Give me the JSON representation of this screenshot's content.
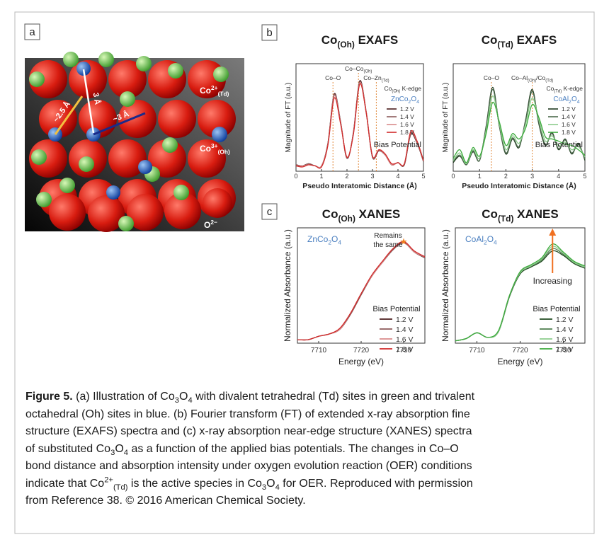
{
  "panel_a": {
    "label": "a",
    "distances": [
      "~2.5 Å",
      "3 Å",
      "~3 Å"
    ],
    "legend": [
      [
        {
          "text": "Co"
        },
        {
          "text": "2+",
          "style": "sup"
        },
        {
          "text": "(Td)",
          "style": "sub"
        }
      ],
      [
        {
          "text": "Co"
        },
        {
          "text": "3+",
          "style": "sup"
        },
        {
          "text": "(Oh)",
          "style": "sub"
        }
      ],
      [
        {
          "text": "O"
        },
        {
          "text": "2−",
          "style": "sup"
        }
      ]
    ]
  },
  "panel_b": {
    "label": "b"
  },
  "panel_c": {
    "label": "c"
  },
  "chart_data": [
    {
      "type": "line",
      "title": [
        {
          "text": "Co"
        },
        {
          "text": "(Oh)",
          "style": "sub"
        },
        {
          "text": " EXAFS"
        }
      ],
      "xlabel": "Pseudo Interatomic Distance (Å)",
      "ylabel": "Magnitude of FT (a.u.)",
      "xlim": [
        0,
        5
      ],
      "xticks": [
        0,
        1,
        2,
        3,
        4,
        5
      ],
      "ylim": [
        0,
        1
      ],
      "edge": [
        {
          "text": "Co"
        },
        {
          "text": "(Oh)",
          "style": "sub"
        },
        {
          "text": " K-edge"
        }
      ],
      "sample": [
        {
          "text": "ZnCo"
        },
        {
          "text": "2",
          "style": "sub"
        },
        {
          "text": "O"
        },
        {
          "text": "4",
          "style": "sub"
        }
      ],
      "legend_title": "Bias Potential",
      "vlines": [
        {
          "value": 1.45,
          "label": [
            {
              "text": "Co–O"
            }
          ]
        },
        {
          "value": 2.45,
          "label": [
            {
              "text": "Co–Co"
            },
            {
              "text": "(Oh)",
              "style": "sub"
            }
          ]
        },
        {
          "value": 3.15,
          "label": [
            {
              "text": "Co–Zn"
            },
            {
              "text": "(Td)",
              "style": "sub"
            }
          ]
        }
      ],
      "x": [
        0,
        0.25,
        0.5,
        0.75,
        1,
        1.25,
        1.5,
        1.75,
        2,
        2.25,
        2.5,
        2.75,
        3,
        3.25,
        3.5,
        3.75,
        4,
        4.25,
        4.5,
        4.75,
        5
      ],
      "series": [
        {
          "name": "1.2 V",
          "color": "#4a1c1c",
          "values": [
            0.06,
            0.05,
            0.07,
            0.05,
            0.05,
            0.26,
            0.72,
            0.46,
            0.12,
            0.36,
            0.84,
            0.56,
            0.13,
            0.19,
            0.15,
            0.06,
            0.08,
            0.06,
            0.34,
            0.26,
            0.09
          ]
        },
        {
          "name": "1.4 V",
          "color": "#8b5a5a",
          "values": [
            0.06,
            0.05,
            0.07,
            0.05,
            0.05,
            0.25,
            0.71,
            0.45,
            0.12,
            0.35,
            0.83,
            0.55,
            0.13,
            0.19,
            0.15,
            0.06,
            0.08,
            0.06,
            0.35,
            0.27,
            0.09
          ]
        },
        {
          "name": "1.6 V",
          "color": "#d88a8a",
          "values": [
            0.05,
            0.05,
            0.06,
            0.05,
            0.05,
            0.25,
            0.7,
            0.45,
            0.13,
            0.35,
            0.82,
            0.56,
            0.14,
            0.2,
            0.15,
            0.06,
            0.08,
            0.07,
            0.36,
            0.27,
            0.1
          ]
        },
        {
          "name": "1.8 V",
          "color": "#d02a2a",
          "values": [
            0.05,
            0.04,
            0.06,
            0.05,
            0.04,
            0.24,
            0.68,
            0.44,
            0.13,
            0.34,
            0.81,
            0.55,
            0.14,
            0.2,
            0.16,
            0.07,
            0.08,
            0.07,
            0.37,
            0.28,
            0.1
          ]
        }
      ]
    },
    {
      "type": "line",
      "title": [
        {
          "text": "Co"
        },
        {
          "text": "(Td)",
          "style": "sub"
        },
        {
          "text": " EXAFS"
        }
      ],
      "xlabel": "Pseudo Interatomic Distance (Å)",
      "ylabel": "Magnitude of FT (a.u.)",
      "xlim": [
        0,
        5
      ],
      "xticks": [
        0,
        1,
        2,
        3,
        4,
        5
      ],
      "ylim": [
        0,
        1
      ],
      "edge": [
        {
          "text": "Co"
        },
        {
          "text": "(Td)",
          "style": "sub"
        },
        {
          "text": " K-edge"
        }
      ],
      "sample": [
        {
          "text": "CoAl"
        },
        {
          "text": "2",
          "style": "sub"
        },
        {
          "text": "O"
        },
        {
          "text": "4",
          "style": "sub"
        }
      ],
      "legend_title": "Bias Potential",
      "vlines": [
        {
          "value": 1.45,
          "label": [
            {
              "text": "Co–O"
            }
          ]
        },
        {
          "value": 3.0,
          "label": [
            {
              "text": "Co–Al"
            },
            {
              "text": "(Oh)",
              "style": "sub"
            },
            {
              "text": "/Co"
            },
            {
              "text": "(Td)",
              "style": "sub"
            }
          ]
        }
      ],
      "x": [
        0,
        0.25,
        0.5,
        0.75,
        1,
        1.25,
        1.5,
        1.75,
        2,
        2.25,
        2.5,
        2.75,
        3,
        3.25,
        3.5,
        3.75,
        4,
        4.25,
        4.5,
        4.75,
        5
      ],
      "series": [
        {
          "name": "1.2 V",
          "color": "#1f3a1f",
          "values": [
            0.08,
            0.14,
            0.06,
            0.18,
            0.1,
            0.42,
            0.78,
            0.42,
            0.16,
            0.3,
            0.22,
            0.48,
            0.76,
            0.44,
            0.24,
            0.36,
            0.2,
            0.3,
            0.16,
            0.26,
            0.1
          ]
        },
        {
          "name": "1.4 V",
          "color": "#4d6b4d",
          "values": [
            0.09,
            0.15,
            0.06,
            0.19,
            0.1,
            0.41,
            0.76,
            0.42,
            0.17,
            0.31,
            0.23,
            0.47,
            0.74,
            0.45,
            0.25,
            0.35,
            0.21,
            0.29,
            0.17,
            0.25,
            0.11
          ]
        },
        {
          "name": "1.6 V",
          "color": "#8ccc8c",
          "values": [
            0.1,
            0.17,
            0.07,
            0.2,
            0.12,
            0.38,
            0.7,
            0.44,
            0.2,
            0.33,
            0.26,
            0.44,
            0.68,
            0.48,
            0.28,
            0.33,
            0.24,
            0.27,
            0.2,
            0.23,
            0.13
          ]
        },
        {
          "name": "1.8 V",
          "color": "#3caa3c",
          "values": [
            0.12,
            0.2,
            0.08,
            0.22,
            0.14,
            0.35,
            0.64,
            0.46,
            0.24,
            0.35,
            0.3,
            0.4,
            0.62,
            0.5,
            0.32,
            0.3,
            0.28,
            0.25,
            0.24,
            0.2,
            0.15
          ]
        }
      ]
    },
    {
      "type": "line",
      "title": [
        {
          "text": "Co"
        },
        {
          "text": "(Oh)",
          "style": "sub"
        },
        {
          "text": " XANES"
        }
      ],
      "xlabel": "Energy (eV)",
      "ylabel": "Normalized Absorbance (a.u.)",
      "xlim": [
        7705,
        7735
      ],
      "xticks": [
        7710,
        7720,
        7730
      ],
      "ylim": [
        0,
        1
      ],
      "sample": [
        {
          "text": "ZnCo"
        },
        {
          "text": "2",
          "style": "sub"
        },
        {
          "text": "O"
        },
        {
          "text": "4",
          "style": "sub"
        }
      ],
      "note": [
        "Remains",
        "the same"
      ],
      "legend_title": "Bias Potential",
      "x": [
        7705,
        7707.5,
        7710,
        7712.5,
        7715,
        7717.5,
        7720,
        7722.5,
        7725,
        7727.5,
        7730,
        7732.5,
        7735
      ],
      "series": [
        {
          "name": "1.2 V",
          "color": "#4a1c1c",
          "values": [
            0.03,
            0.03,
            0.06,
            0.08,
            0.12,
            0.25,
            0.42,
            0.58,
            0.7,
            0.81,
            0.88,
            0.79,
            0.74
          ]
        },
        {
          "name": "1.4 V",
          "color": "#8b5a5a",
          "values": [
            0.03,
            0.03,
            0.06,
            0.08,
            0.12,
            0.25,
            0.42,
            0.58,
            0.7,
            0.81,
            0.87,
            0.79,
            0.74
          ]
        },
        {
          "name": "1.6 V",
          "color": "#d88a8a",
          "values": [
            0.03,
            0.03,
            0.06,
            0.08,
            0.12,
            0.26,
            0.43,
            0.58,
            0.7,
            0.82,
            0.88,
            0.79,
            0.75
          ]
        },
        {
          "name": "1.8 V",
          "color": "#d02a2a",
          "values": [
            0.03,
            0.03,
            0.06,
            0.08,
            0.13,
            0.26,
            0.43,
            0.59,
            0.71,
            0.82,
            0.88,
            0.8,
            0.75
          ]
        }
      ]
    },
    {
      "type": "line",
      "title": [
        {
          "text": "Co"
        },
        {
          "text": "(Td)",
          "style": "sub"
        },
        {
          "text": " XANES"
        }
      ],
      "xlabel": "Energy (eV)",
      "ylabel": "Normalized Absorbance (a.u.)",
      "xlim": [
        7705,
        7735
      ],
      "xticks": [
        7710,
        7720,
        7730
      ],
      "ylim": [
        0,
        1
      ],
      "sample": [
        {
          "text": "CoAl"
        },
        {
          "text": "2",
          "style": "sub"
        },
        {
          "text": "O"
        },
        {
          "text": "4",
          "style": "sub"
        }
      ],
      "note": [
        "Increasing"
      ],
      "legend_title": "Bias Potential",
      "x": [
        7705,
        7707.5,
        7710,
        7712.5,
        7715,
        7717.5,
        7720,
        7722.5,
        7725,
        7727.5,
        7730,
        7732.5,
        7735
      ],
      "series": [
        {
          "name": "1.2 V",
          "color": "#1f4a1f",
          "values": [
            0.02,
            0.04,
            0.09,
            0.05,
            0.1,
            0.4,
            0.6,
            0.66,
            0.71,
            0.8,
            0.76,
            0.69,
            0.65
          ]
        },
        {
          "name": "1.4 V",
          "color": "#4d7d4d",
          "values": [
            0.02,
            0.04,
            0.09,
            0.05,
            0.1,
            0.4,
            0.61,
            0.67,
            0.72,
            0.82,
            0.77,
            0.7,
            0.66
          ]
        },
        {
          "name": "1.6 V",
          "color": "#8ccc8c",
          "values": [
            0.02,
            0.04,
            0.09,
            0.05,
            0.1,
            0.41,
            0.61,
            0.67,
            0.73,
            0.84,
            0.78,
            0.7,
            0.66
          ]
        },
        {
          "name": "1.8 V",
          "color": "#3caa3c",
          "values": [
            0.02,
            0.04,
            0.09,
            0.05,
            0.11,
            0.41,
            0.62,
            0.68,
            0.74,
            0.86,
            0.79,
            0.71,
            0.67
          ]
        }
      ]
    }
  ],
  "caption": {
    "lines": [
      [
        {
          "text": "Figure 5.",
          "style": "bold"
        },
        {
          "text": " (a) Illustration of Co"
        },
        {
          "text": "3",
          "style": "sub"
        },
        {
          "text": "O"
        },
        {
          "text": "4",
          "style": "sub"
        },
        {
          "text": " with divalent tetrahedral (Td) sites in green and trivalent"
        }
      ],
      [
        {
          "text": "octahedral (Oh) sites in blue. (b) Fourier transform (FT) of extended x-ray absorption fine"
        }
      ],
      [
        {
          "text": "structure (EXAFS) spectra and (c) x-ray absorption near-edge structure (XANES) spectra"
        }
      ],
      [
        {
          "text": "of substituted Co"
        },
        {
          "text": "3",
          "style": "sub"
        },
        {
          "text": "O"
        },
        {
          "text": "4",
          "style": "sub"
        },
        {
          "text": " as a function of the applied bias potentials. The changes in Co–O"
        }
      ],
      [
        {
          "text": "bond distance and absorption intensity under oxygen evolution reaction (OER) conditions"
        }
      ],
      [
        {
          "text": "indicate that Co"
        },
        {
          "text": "2+",
          "style": "sup"
        },
        {
          "text": "(Td)",
          "style": "sub"
        },
        {
          "text": " is the active species in Co"
        },
        {
          "text": "3",
          "style": "sub"
        },
        {
          "text": "O"
        },
        {
          "text": "4",
          "style": "sub"
        },
        {
          "text": " for OER. Reproduced with permission"
        }
      ],
      [
        {
          "text": "from Reference 38. © 2016 American Chemical Society."
        }
      ]
    ]
  }
}
